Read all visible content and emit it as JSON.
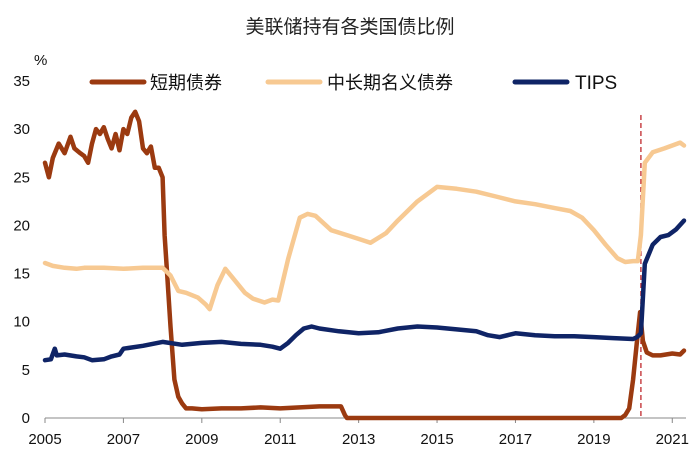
{
  "chart_data": {
    "type": "line",
    "title": "美联储持有各类国债比例",
    "ylabel": "%",
    "xlabel": "",
    "ylim": [
      0,
      35
    ],
    "xlim": [
      2005,
      2021.35
    ],
    "yticks": [
      0,
      5,
      10,
      15,
      20,
      25,
      30,
      35
    ],
    "xticks": [
      2005,
      2007,
      2009,
      2011,
      2013,
      2015,
      2017,
      2019,
      2021
    ],
    "grid": false,
    "legend_position": "top",
    "reference_line": {
      "x": 2020.2,
      "style": "dashed",
      "color": "#c0282d"
    },
    "series": [
      {
        "name": "短期债券",
        "color": "#9b3a10",
        "x": [
          2005.0,
          2005.1,
          2005.2,
          2005.35,
          2005.5,
          2005.65,
          2005.75,
          2005.9,
          2006.0,
          2006.1,
          2006.2,
          2006.3,
          2006.4,
          2006.5,
          2006.6,
          2006.7,
          2006.8,
          2006.9,
          2007.0,
          2007.1,
          2007.2,
          2007.3,
          2007.4,
          2007.5,
          2007.6,
          2007.7,
          2007.8,
          2007.9,
          2008.0,
          2008.05,
          2008.1,
          2008.2,
          2008.3,
          2008.4,
          2008.5,
          2008.6,
          2008.75,
          2009.0,
          2009.5,
          2010.0,
          2010.5,
          2011.0,
          2011.5,
          2012.0,
          2012.3,
          2012.55,
          2012.65,
          2012.7,
          2013.0,
          2015.0,
          2017.0,
          2019.0,
          2019.7,
          2019.8,
          2019.9,
          2020.0,
          2020.1,
          2020.18,
          2020.25,
          2020.35,
          2020.5,
          2020.7,
          2021.0,
          2021.2,
          2021.3
        ],
        "values": [
          26.5,
          25.0,
          27.0,
          28.5,
          27.5,
          29.2,
          28.0,
          27.5,
          27.2,
          26.5,
          28.5,
          30.0,
          29.5,
          30.2,
          29.0,
          28.0,
          29.5,
          27.8,
          30.0,
          29.5,
          31.2,
          31.8,
          30.8,
          28.0,
          27.5,
          28.2,
          26.0,
          26.0,
          25.0,
          19.0,
          16.0,
          9.5,
          4.0,
          2.2,
          1.5,
          1.0,
          1.0,
          0.9,
          1.0,
          1.0,
          1.1,
          1.0,
          1.1,
          1.2,
          1.2,
          1.2,
          0.3,
          0.0,
          0.0,
          0.0,
          0.0,
          0.0,
          0.0,
          0.3,
          1.0,
          4.0,
          8.0,
          11.0,
          8.0,
          6.8,
          6.5,
          6.5,
          6.7,
          6.6,
          7.0
        ]
      },
      {
        "name": "中长期名义债券",
        "color": "#f7c992",
        "x": [
          2005.0,
          2005.2,
          2005.5,
          2005.8,
          2006.0,
          2006.5,
          2007.0,
          2007.5,
          2008.0,
          2008.2,
          2008.4,
          2008.6,
          2008.9,
          2009.1,
          2009.2,
          2009.4,
          2009.6,
          2009.8,
          2010.1,
          2010.3,
          2010.6,
          2010.8,
          2010.95,
          2011.2,
          2011.5,
          2011.7,
          2011.9,
          2012.3,
          2012.7,
          2013.0,
          2013.3,
          2013.7,
          2014.0,
          2014.5,
          2015.0,
          2015.5,
          2016.0,
          2016.5,
          2017.0,
          2017.5,
          2018.0,
          2018.4,
          2018.7,
          2019.0,
          2019.3,
          2019.6,
          2019.8,
          2020.0,
          2020.12,
          2020.2,
          2020.3,
          2020.5,
          2020.8,
          2021.0,
          2021.2,
          2021.3
        ],
        "values": [
          16.1,
          15.8,
          15.6,
          15.5,
          15.6,
          15.6,
          15.5,
          15.6,
          15.6,
          14.8,
          13.2,
          13.0,
          12.5,
          11.8,
          11.3,
          13.8,
          15.5,
          14.5,
          13.0,
          12.4,
          12.0,
          12.3,
          12.2,
          16.5,
          20.8,
          21.2,
          21.0,
          19.5,
          19.0,
          18.6,
          18.2,
          19.2,
          20.5,
          22.5,
          24.0,
          23.8,
          23.5,
          23.0,
          22.5,
          22.2,
          21.8,
          21.5,
          20.8,
          19.5,
          18.0,
          16.6,
          16.2,
          16.3,
          16.3,
          19.0,
          26.5,
          27.6,
          28.0,
          28.3,
          28.6,
          28.3
        ]
      },
      {
        "name": "TIPS",
        "color": "#0f2466",
        "x": [
          2005.0,
          2005.15,
          2005.25,
          2005.3,
          2005.5,
          2005.8,
          2006.0,
          2006.2,
          2006.5,
          2006.7,
          2006.9,
          2007.0,
          2007.5,
          2008.0,
          2008.5,
          2009.0,
          2009.5,
          2010.0,
          2010.5,
          2010.8,
          2011.0,
          2011.2,
          2011.4,
          2011.6,
          2011.8,
          2012.0,
          2012.5,
          2013.0,
          2013.5,
          2014.0,
          2014.5,
          2015.0,
          2015.5,
          2016.0,
          2016.3,
          2016.6,
          2017.0,
          2017.5,
          2018.0,
          2018.5,
          2019.0,
          2019.5,
          2020.0,
          2020.1,
          2020.2,
          2020.3,
          2020.5,
          2020.7,
          2020.9,
          2021.1,
          2021.3
        ],
        "values": [
          6.0,
          6.1,
          7.2,
          6.5,
          6.6,
          6.4,
          6.3,
          6.0,
          6.1,
          6.4,
          6.6,
          7.2,
          7.5,
          7.9,
          7.6,
          7.8,
          7.9,
          7.7,
          7.6,
          7.4,
          7.2,
          7.8,
          8.6,
          9.3,
          9.5,
          9.3,
          9.0,
          8.8,
          8.9,
          9.3,
          9.5,
          9.4,
          9.2,
          9.0,
          8.6,
          8.4,
          8.8,
          8.6,
          8.5,
          8.5,
          8.4,
          8.3,
          8.2,
          8.4,
          8.8,
          16.0,
          18.0,
          18.8,
          19.0,
          19.6,
          20.5
        ]
      }
    ]
  }
}
